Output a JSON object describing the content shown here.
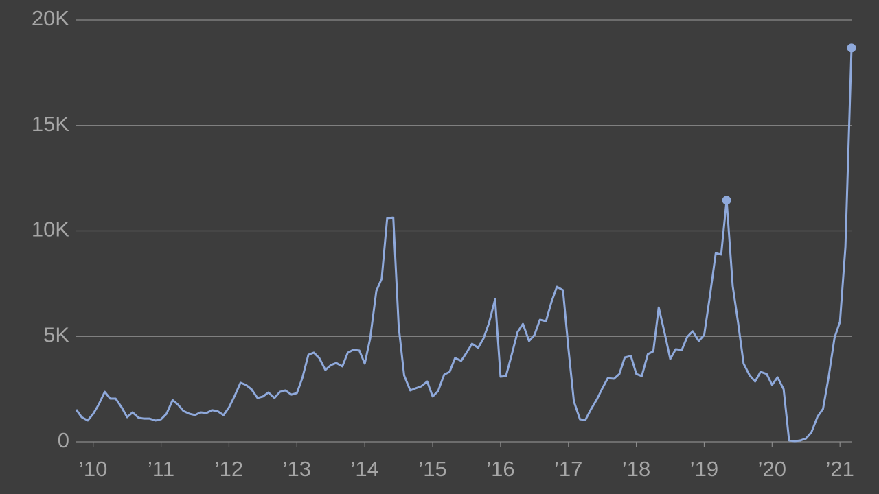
{
  "chart_data": {
    "type": "line",
    "x": [
      2009.75,
      2009.83,
      2009.92,
      2010,
      2010.08,
      2010.17,
      2010.25,
      2010.33,
      2010.42,
      2010.5,
      2010.58,
      2010.67,
      2010.75,
      2010.83,
      2010.92,
      2011,
      2011.08,
      2011.17,
      2011.25,
      2011.33,
      2011.42,
      2011.5,
      2011.58,
      2011.67,
      2011.75,
      2011.83,
      2011.92,
      2012,
      2012.08,
      2012.17,
      2012.25,
      2012.33,
      2012.42,
      2012.5,
      2012.58,
      2012.67,
      2012.75,
      2012.83,
      2012.92,
      2013,
      2013.08,
      2013.17,
      2013.25,
      2013.33,
      2013.42,
      2013.5,
      2013.58,
      2013.67,
      2013.75,
      2013.83,
      2013.92,
      2014,
      2014.08,
      2014.17,
      2014.25,
      2014.33,
      2014.42,
      2014.5,
      2014.58,
      2014.67,
      2014.75,
      2014.83,
      2014.92,
      2015,
      2015.08,
      2015.17,
      2015.25,
      2015.33,
      2015.42,
      2015.5,
      2015.58,
      2015.67,
      2015.75,
      2015.83,
      2015.92,
      2016,
      2016.08,
      2016.17,
      2016.25,
      2016.33,
      2016.42,
      2016.5,
      2016.58,
      2016.67,
      2016.75,
      2016.83,
      2016.92,
      2017,
      2017.08,
      2017.17,
      2017.25,
      2017.33,
      2017.42,
      2017.5,
      2017.58,
      2017.67,
      2017.75,
      2017.83,
      2017.92,
      2018,
      2018.08,
      2018.17,
      2018.25,
      2018.33,
      2018.42,
      2018.5,
      2018.58,
      2018.67,
      2018.75,
      2018.83,
      2018.92,
      2019,
      2019.08,
      2019.17,
      2019.25,
      2019.33,
      2019.42,
      2019.5,
      2019.58,
      2019.67,
      2019.75,
      2019.83,
      2019.92,
      2020,
      2020.08,
      2020.17,
      2020.25,
      2020.33,
      2020.42,
      2020.5,
      2020.58,
      2020.67,
      2020.75,
      2020.83,
      2020.92,
      2021,
      2021.08,
      2021.17
    ],
    "values": [
      1530,
      1170,
      1010,
      1330,
      1760,
      2370,
      2050,
      2050,
      1630,
      1170,
      1400,
      1140,
      1100,
      1100,
      1010,
      1070,
      1330,
      1980,
      1760,
      1460,
      1330,
      1270,
      1400,
      1370,
      1500,
      1460,
      1270,
      1630,
      2150,
      2800,
      2700,
      2500,
      2080,
      2150,
      2340,
      2080,
      2370,
      2440,
      2240,
      2310,
      3020,
      4130,
      4230,
      3970,
      3410,
      3640,
      3740,
      3580,
      4230,
      4360,
      4330,
      3710,
      4910,
      7150,
      7740,
      10600,
      10630,
      5460,
      3150,
      2440,
      2540,
      2630,
      2860,
      2150,
      2410,
      3190,
      3320,
      3970,
      3840,
      4230,
      4650,
      4460,
      4910,
      5630,
      6760,
      3090,
      3120,
      4200,
      5200,
      5590,
      4780,
      5070,
      5790,
      5720,
      6630,
      7350,
      7190,
      4420,
      1920,
      1070,
      1040,
      1530,
      2020,
      2540,
      3020,
      2990,
      3220,
      4000,
      4070,
      3220,
      3120,
      4160,
      4290,
      6370,
      5110,
      3930,
      4390,
      4360,
      4980,
      5240,
      4780,
      5070,
      6830,
      8940,
      8880,
      11450,
      7380,
      5630,
      3710,
      3150,
      2860,
      3320,
      3220,
      2700,
      3060,
      2500,
      70,
      30,
      70,
      160,
      460,
      1200,
      1560,
      3020,
      4940,
      5690,
      9240,
      18670
    ],
    "color": "#8fa9db",
    "markers": [
      115,
      137
    ],
    "xlim": [
      2009.75,
      2021.17
    ],
    "xticks": [
      {
        "value": 2010,
        "label": "’10"
      },
      {
        "value": 2011,
        "label": "’11"
      },
      {
        "value": 2012,
        "label": "’12"
      },
      {
        "value": 2013,
        "label": "’13"
      },
      {
        "value": 2014,
        "label": "’14"
      },
      {
        "value": 2015,
        "label": "’15"
      },
      {
        "value": 2016,
        "label": "’16"
      },
      {
        "value": 2017,
        "label": "’17"
      },
      {
        "value": 2018,
        "label": "’18"
      },
      {
        "value": 2019,
        "label": "’19"
      },
      {
        "value": 2020,
        "label": "’20"
      },
      {
        "value": 2021,
        "label": "’21"
      }
    ],
    "ylim": [
      0,
      20000
    ],
    "yticks": [
      0,
      {
        "value": 5000,
        "label": "5K"
      },
      {
        "value": 10000,
        "label": "10K"
      },
      {
        "value": 15000,
        "label": "15K"
      },
      {
        "value": 20000,
        "label": "20K"
      }
    ],
    "grid": true
  }
}
